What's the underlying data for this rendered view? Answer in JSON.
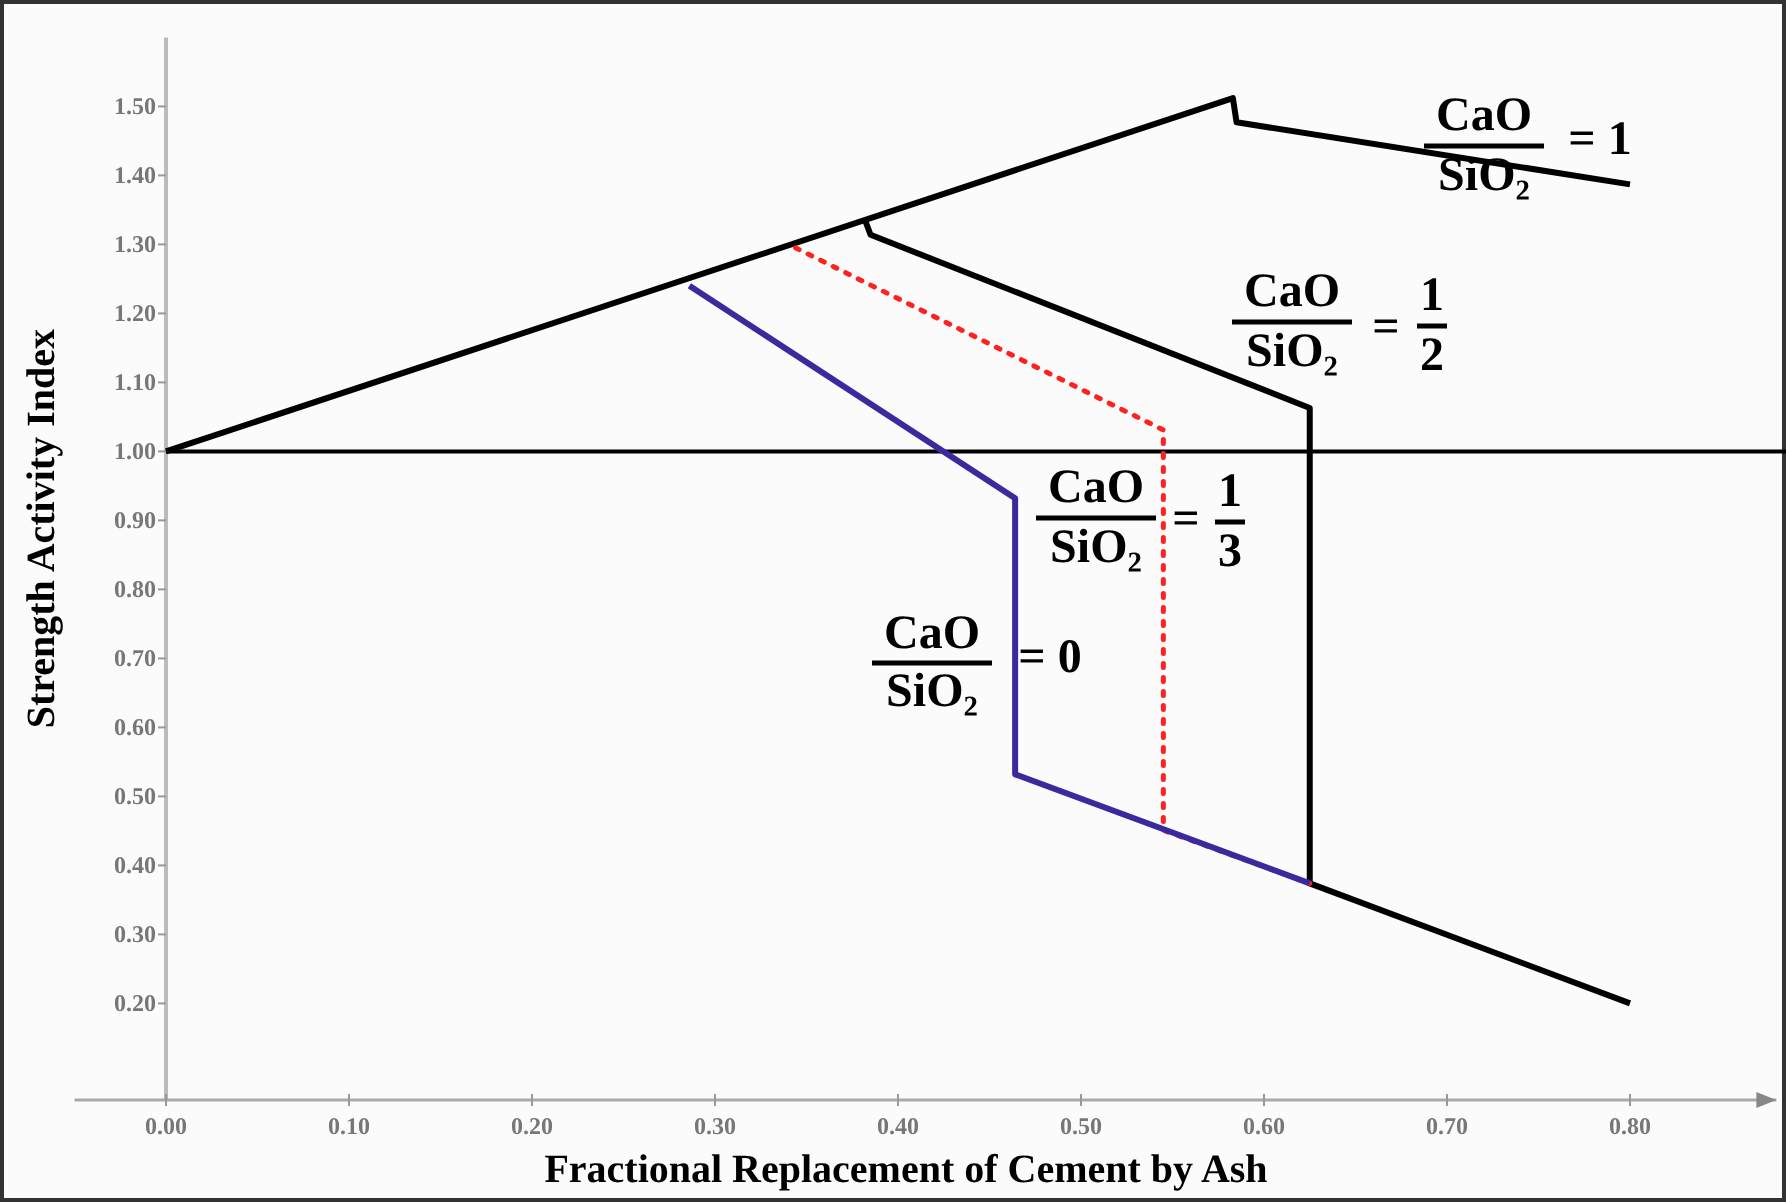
{
  "chart_data": {
    "type": "line",
    "xlabel": "Fractional Replacement of Cement by Ash",
    "ylabel": "Strength Activity Index",
    "xlim": [
      -0.05,
      0.88
    ],
    "ylim": [
      0.06,
      1.6
    ],
    "xticks": [
      {
        "value": 0,
        "label": "0.00"
      },
      {
        "value": 0.1,
        "label": "0.10"
      },
      {
        "value": 0.2,
        "label": "0.20"
      },
      {
        "value": 0.3,
        "label": "0.30"
      },
      {
        "value": 0.4,
        "label": "0.40"
      },
      {
        "value": 0.5,
        "label": "0.50"
      },
      {
        "value": 0.6,
        "label": "0.60"
      },
      {
        "value": 0.7,
        "label": "0.70"
      },
      {
        "value": 0.8,
        "label": "0.80"
      }
    ],
    "yticks": [
      {
        "value": 0.2,
        "label": "0.20"
      },
      {
        "value": 0.3,
        "label": "0.30"
      },
      {
        "value": 0.4,
        "label": "0.40"
      },
      {
        "value": 0.5,
        "label": "0.50"
      },
      {
        "value": 0.6,
        "label": "0.60"
      },
      {
        "value": 0.7,
        "label": "0.70"
      },
      {
        "value": 0.8,
        "label": "0.80"
      },
      {
        "value": 0.9,
        "label": "0.90"
      },
      {
        "value": 1.0,
        "label": "1.00"
      },
      {
        "value": 1.1,
        "label": "1.10"
      },
      {
        "value": 1.2,
        "label": "1.20"
      },
      {
        "value": 1.3,
        "label": "1.30"
      },
      {
        "value": 1.4,
        "label": "1.40"
      },
      {
        "value": 1.5,
        "label": "1.50"
      }
    ],
    "series": [
      {
        "color": "#000000",
        "line_style": "solid",
        "x": [
          0,
          0.583,
          0.585,
          0.8
        ],
        "values": [
          1.0,
          1.512,
          1.477,
          1.387
        ]
      },
      {
        "color": "#000000",
        "line_style": "solid",
        "x": [
          0.382,
          0.385,
          0.625,
          0.625,
          0.8
        ],
        "values": [
          1.335,
          1.314,
          1.063,
          0.374,
          0.2
        ]
      },
      {
        "color": "#ff2020",
        "line_style": "dotted",
        "x": [
          0.344,
          0.545,
          0.545,
          0.625
        ],
        "values": [
          1.295,
          1.031,
          0.451,
          0.374
        ]
      },
      {
        "color": "#3a2a9e",
        "line_style": "solid",
        "x": [
          0.286,
          0.464,
          0.464,
          0.625
        ],
        "values": [
          1.24,
          0.932,
          0.532,
          0.374
        ]
      }
    ],
    "ref_lines": [
      {
        "axis": "y",
        "value": 1.0,
        "color": "#000000"
      }
    ],
    "annotations": [
      "CaO",
      "SiO₂",
      "= 1",
      "CaO",
      "SiO₂",
      "=",
      "1",
      "2",
      "CaO",
      "SiO₂",
      "=",
      "1",
      "3",
      "CaO",
      "SiO₂",
      "= 0"
    ],
    "grid": false
  }
}
